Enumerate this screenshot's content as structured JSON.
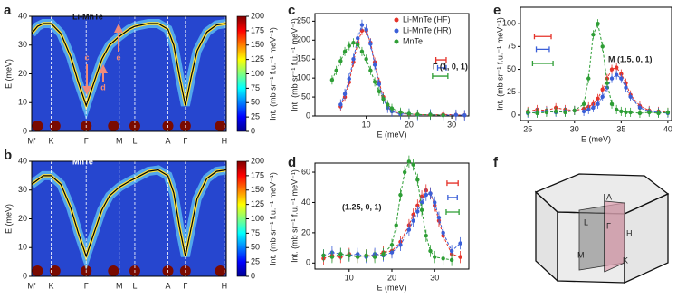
{
  "chart_data": [
    {
      "type": "heatmap",
      "panel_label": "a",
      "title": "Li-MnTe",
      "xlim": [
        0,
        10
      ],
      "xticks": [
        {
          "value": 0,
          "label": "M'"
        },
        {
          "value": 1.0,
          "label": "K"
        },
        {
          "value": 2.8,
          "label": "Γ"
        },
        {
          "value": 4.5,
          "label": "M"
        },
        {
          "value": 5.3,
          "label": "L"
        },
        {
          "value": 7.0,
          "label": "A"
        },
        {
          "value": 7.9,
          "label": "Γ"
        },
        {
          "value": 9.9,
          "label": "H"
        }
      ],
      "ylim": [
        0,
        40
      ],
      "yticks": [
        0,
        10,
        20,
        30,
        40
      ],
      "ylabel": "E (meV)",
      "colorbar": {
        "lim": [
          0,
          200
        ],
        "ticks": [
          0,
          25,
          50,
          75,
          100,
          125,
          150,
          175,
          200
        ],
        "label": "Int. (mb sr⁻¹ f.u.⁻¹ meV⁻¹)"
      },
      "dispersion": {
        "color": "#000000",
        "x": [
          0,
          0.3,
          0.6,
          1.0,
          1.5,
          2.0,
          2.4,
          2.8,
          3.2,
          3.6,
          4.0,
          4.5,
          5.0,
          5.3,
          6.0,
          6.5,
          7.0,
          7.3,
          7.6,
          7.9,
          8.2,
          8.5,
          9.0,
          9.5,
          10
        ],
        "values": [
          34,
          36.5,
          37.5,
          37.5,
          34,
          26,
          17,
          9,
          17,
          25,
          30,
          33,
          35.5,
          36.5,
          37.5,
          37.5,
          35.5,
          30,
          19,
          9,
          19,
          28,
          34.5,
          37,
          37.5
        ]
      },
      "annotations": [
        "c",
        "d",
        "e"
      ]
    },
    {
      "type": "heatmap",
      "panel_label": "b",
      "title": "MnTe",
      "xlim": [
        0,
        10
      ],
      "xticks": [
        {
          "value": 0,
          "label": "M'"
        },
        {
          "value": 1.0,
          "label": "K"
        },
        {
          "value": 2.8,
          "label": "Γ"
        },
        {
          "value": 4.5,
          "label": "M"
        },
        {
          "value": 5.3,
          "label": "L"
        },
        {
          "value": 7.0,
          "label": "A"
        },
        {
          "value": 7.9,
          "label": "Γ"
        },
        {
          "value": 9.9,
          "label": "H"
        }
      ],
      "ylim": [
        0,
        40
      ],
      "yticks": [
        0,
        10,
        20,
        30,
        40
      ],
      "ylabel": "E (meV)",
      "colorbar": {
        "lim": [
          0,
          200
        ],
        "ticks": [
          0,
          25,
          50,
          75,
          100,
          125,
          150,
          175,
          200
        ],
        "label": "Int. (mb sr⁻¹ f.u.⁻¹ meV⁻¹)"
      },
      "dispersion": {
        "color": "#000000",
        "x": [
          0,
          0.3,
          0.6,
          1.0,
          1.5,
          2.0,
          2.4,
          2.8,
          3.2,
          3.6,
          4.0,
          4.5,
          5.0,
          5.3,
          6.0,
          6.5,
          7.0,
          7.3,
          7.6,
          7.9,
          8.2,
          8.5,
          9.0,
          9.5,
          10
        ],
        "values": [
          32,
          33.5,
          35,
          35,
          32,
          24,
          15,
          7,
          15,
          23,
          28,
          31,
          33,
          34,
          36.5,
          37,
          35,
          29,
          17,
          7,
          17,
          27,
          34,
          36.5,
          37
        ]
      }
    },
    {
      "type": "scatter",
      "panel_label": "c",
      "label": "Γ (1, 0, 1)",
      "xlim": [
        -2,
        34
      ],
      "xticks": [
        10,
        20,
        30
      ],
      "ylim": [
        0,
        270
      ],
      "yticks": [
        0,
        50,
        100,
        150,
        200,
        250
      ],
      "xlabel": "E (meV)",
      "ylabel": "Int. (mb sr⁻¹ f.u.⁻¹ meV⁻¹)",
      "series": [
        {
          "name": "Li-MnTe (HF)",
          "color": "#e5332a",
          "error": 12,
          "resolution": {
            "x": 27.5,
            "xerr": 1.2,
            "y": 148
          },
          "x": [
            4,
            5,
            6,
            7,
            8,
            9,
            10,
            11,
            12,
            13,
            14,
            15,
            16,
            18,
            20,
            22,
            25,
            28,
            31,
            33
          ],
          "values": [
            25,
            50,
            89,
            142,
            193,
            225,
            225,
            193,
            142,
            89,
            50,
            25,
            13,
            6,
            5,
            4,
            3,
            4,
            3,
            2
          ]
        },
        {
          "name": "Li-MnTe (HR)",
          "color": "#3a5fd8",
          "error": 14,
          "resolution": {
            "x": 27.7,
            "xerr": 1.0,
            "y": 127
          },
          "x": [
            4,
            5,
            6,
            7,
            8,
            9,
            10,
            11,
            12,
            13,
            14,
            15,
            16,
            18,
            20,
            22,
            25,
            28,
            31,
            33
          ],
          "values": [
            30,
            58,
            98,
            150,
            205,
            240,
            228,
            190,
            135,
            84,
            45,
            22,
            12,
            5,
            6,
            3,
            4,
            2,
            3,
            2
          ]
        },
        {
          "name": "MnTe",
          "color": "#2e9e35",
          "error": 12,
          "resolution": {
            "x": 27.3,
            "xerr": 1.8,
            "y": 105
          },
          "x": [
            2,
            3,
            4,
            5,
            6,
            7,
            8,
            9,
            10,
            11,
            12,
            13,
            14,
            15,
            16,
            18,
            20,
            22,
            25,
            28
          ],
          "values": [
            95,
            120,
            145,
            170,
            185,
            193,
            188,
            170,
            150,
            120,
            90,
            65,
            45,
            30,
            20,
            10,
            6,
            4,
            3,
            2
          ]
        }
      ]
    },
    {
      "type": "scatter",
      "panel_label": "d",
      "label": "(1.25, 0, 1)",
      "xlim": [
        2,
        38
      ],
      "xticks": [
        10,
        20,
        30
      ],
      "ylim": [
        -4,
        66
      ],
      "yticks": [
        0,
        20,
        40,
        60
      ],
      "xlabel": "E (meV)",
      "ylabel": "Int. (mb sr⁻¹ f.u.⁻¹ meV⁻¹)",
      "series": [
        {
          "color": "#e5332a",
          "error": 4,
          "resolution": {
            "x": 34.2,
            "xerr": 1.3,
            "y": 52.8
          },
          "x": [
            4,
            6,
            8,
            10,
            12,
            14,
            16,
            18,
            20,
            22,
            24,
            25,
            26,
            27,
            28,
            29,
            30,
            31,
            32,
            34,
            36
          ],
          "values": [
            3,
            5,
            4,
            6,
            4,
            5,
            5,
            7,
            8,
            14,
            25,
            32,
            38,
            44,
            48,
            46,
            38,
            28,
            18,
            6,
            4
          ]
        },
        {
          "color": "#3a5fd8",
          "error": 4,
          "resolution": {
            "x": 34.2,
            "xerr": 1.1,
            "y": 43.3
          },
          "x": [
            4,
            6,
            8,
            10,
            12,
            14,
            16,
            18,
            20,
            22,
            24,
            25,
            26,
            27,
            28,
            29,
            30,
            31,
            32,
            34,
            36
          ],
          "values": [
            5,
            7,
            6,
            5,
            6,
            4,
            6,
            5,
            7,
            12,
            22,
            28,
            34,
            40,
            45,
            46,
            40,
            30,
            20,
            8,
            13
          ]
        },
        {
          "color": "#2e9e35",
          "error": 4,
          "resolution": {
            "x": 34.2,
            "xerr": 1.5,
            "y": 33.7
          },
          "x": [
            4,
            6,
            8,
            10,
            12,
            14,
            16,
            18,
            20,
            21,
            22,
            23,
            24,
            25,
            26,
            27,
            28,
            29,
            30,
            32,
            34
          ],
          "values": [
            5,
            4,
            6,
            5,
            4,
            5,
            4,
            6,
            12,
            25,
            45,
            60,
            67,
            65,
            55,
            35,
            18,
            8,
            4,
            3,
            2
          ]
        }
      ]
    },
    {
      "type": "scatter",
      "panel_label": "e",
      "label": "M (1.5, 0, 1)",
      "xlim": [
        24.2,
        40.4
      ],
      "xticks": [
        25,
        30,
        35,
        40
      ],
      "ylim": [
        -6,
        118
      ],
      "yticks": [
        0,
        25,
        50,
        75,
        100
      ],
      "xlabel": "E (meV)",
      "ylabel": "Int. (mb sr⁻¹ f.u.⁻¹ meV⁻¹)",
      "series": [
        {
          "color": "#e5332a",
          "error": 5,
          "resolution": {
            "x": 26.6,
            "xerr": 0.9,
            "y": 86
          },
          "x": [
            25,
            26,
            27,
            28,
            29,
            30,
            31,
            31.5,
            32,
            32.5,
            33,
            33.5,
            34,
            34.5,
            35,
            35.5,
            36,
            37,
            38,
            39,
            40
          ],
          "values": [
            4,
            6,
            5,
            8,
            6,
            5,
            7,
            9,
            12,
            18,
            28,
            40,
            50,
            52,
            45,
            35,
            22,
            10,
            5,
            4,
            3
          ]
        },
        {
          "color": "#3a5fd8",
          "error": 5,
          "resolution": {
            "x": 26.6,
            "xerr": 0.7,
            "y": 72
          },
          "x": [
            25,
            26,
            27,
            28,
            29,
            30,
            31,
            31.5,
            32,
            32.5,
            33,
            33.5,
            34,
            34.5,
            35,
            35.5,
            36,
            37,
            38,
            39,
            40
          ],
          "values": [
            2,
            3,
            4,
            3,
            4,
            5,
            4,
            6,
            8,
            12,
            20,
            30,
            40,
            44,
            40,
            30,
            20,
            8,
            4,
            3,
            2
          ]
        },
        {
          "color": "#2e9e35",
          "error": 5,
          "resolution": {
            "x": 26.6,
            "xerr": 1.1,
            "y": 56.5
          },
          "x": [
            25,
            26,
            27,
            28,
            29,
            30,
            31,
            31.5,
            32,
            32.5,
            33,
            33.5,
            34,
            34.5,
            35,
            35.5,
            36,
            37,
            38,
            39,
            40
          ],
          "values": [
            3,
            2,
            3,
            4,
            3,
            5,
            12,
            40,
            88,
            100,
            75,
            35,
            12,
            6,
            4,
            3,
            3,
            2,
            3,
            2,
            3
          ]
        }
      ]
    }
  ],
  "diagram": {
    "panel_label": "f",
    "labels": [
      "A",
      "L",
      "Γ",
      "H",
      "M",
      "K"
    ]
  }
}
